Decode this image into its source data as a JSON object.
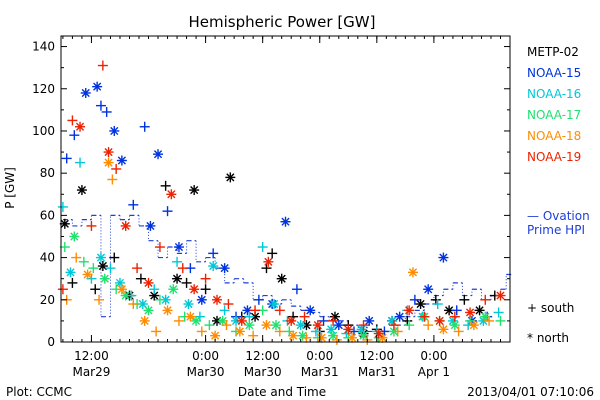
{
  "chart_data": {
    "type": "scatter",
    "title": "Hemispheric Power [GW]",
    "ylabel": "P [GW]",
    "xlabel": "Date and Time",
    "ylim": [
      0,
      145
    ],
    "xlim": [
      -1.6,
      22.0
    ],
    "yticks": [
      0,
      20,
      40,
      60,
      80,
      100,
      120,
      140
    ],
    "xticks": [
      {
        "x": 0,
        "top": "12:00",
        "bottom": "Mar29"
      },
      {
        "x": 6,
        "top": "0:00",
        "bottom": "Mar30"
      },
      {
        "x": 9,
        "top": "12:00",
        "bottom": "Mar30"
      },
      {
        "x": 12,
        "top": "0:00",
        "bottom": "Mar31"
      },
      {
        "x": 15,
        "top": "12:00",
        "bottom": "Mar31"
      },
      {
        "x": 18,
        "top": "0:00",
        "bottom": "Apr 1"
      }
    ],
    "marker_legend": {
      "south": "+ south",
      "north": "* north"
    },
    "series": [
      {
        "name": "METP-02",
        "color": "#000000",
        "points": [
          [
            -1.4,
            56,
            "n"
          ],
          [
            -1.0,
            28,
            "s"
          ],
          [
            -0.5,
            72,
            "n"
          ],
          [
            0.2,
            25,
            "s"
          ],
          [
            0.6,
            36,
            "n"
          ],
          [
            1.2,
            40,
            "s"
          ],
          [
            2.0,
            22,
            "n"
          ],
          [
            2.6,
            30,
            "s"
          ],
          [
            3.3,
            22,
            "n"
          ],
          [
            3.9,
            74,
            "s"
          ],
          [
            4.5,
            30,
            "n"
          ],
          [
            5.0,
            28,
            "s"
          ],
          [
            5.4,
            72,
            "n"
          ],
          [
            6.0,
            25,
            "s"
          ],
          [
            6.6,
            10,
            "n"
          ],
          [
            7.3,
            78,
            "n"
          ],
          [
            7.9,
            12,
            "s"
          ],
          [
            8.6,
            12,
            "n"
          ],
          [
            9.2,
            35,
            "s"
          ],
          [
            9.5,
            42,
            "s"
          ],
          [
            10.0,
            30,
            "n"
          ],
          [
            10.6,
            12,
            "s"
          ],
          [
            11.3,
            8,
            "n"
          ],
          [
            12.0,
            5,
            "s"
          ],
          [
            12.8,
            12,
            "n"
          ],
          [
            13.5,
            8,
            "s"
          ],
          [
            14.3,
            4,
            "n"
          ],
          [
            15.0,
            6,
            "s"
          ],
          [
            15.8,
            10,
            "n"
          ],
          [
            16.6,
            10,
            "s"
          ],
          [
            17.3,
            18,
            "n"
          ],
          [
            18.1,
            20,
            "s"
          ],
          [
            18.8,
            15,
            "n"
          ],
          [
            19.6,
            20,
            "s"
          ],
          [
            20.4,
            15,
            "n"
          ],
          [
            21.2,
            22,
            "s"
          ]
        ]
      },
      {
        "name": "NOAA-15",
        "color": "#0033dd",
        "points": [
          [
            -1.3,
            87,
            "s"
          ],
          [
            -0.9,
            98,
            "s"
          ],
          [
            -0.3,
            118,
            "n"
          ],
          [
            0.3,
            121,
            "n"
          ],
          [
            0.5,
            112,
            "s"
          ],
          [
            0.8,
            109,
            "s"
          ],
          [
            1.2,
            100,
            "n"
          ],
          [
            1.6,
            86,
            "n"
          ],
          [
            2.2,
            65,
            "s"
          ],
          [
            2.8,
            102,
            "s"
          ],
          [
            3.1,
            55,
            "n"
          ],
          [
            3.5,
            89,
            "n"
          ],
          [
            4.0,
            62,
            "s"
          ],
          [
            4.6,
            45,
            "n"
          ],
          [
            5.2,
            35,
            "s"
          ],
          [
            5.8,
            20,
            "n"
          ],
          [
            6.4,
            42,
            "s"
          ],
          [
            7.0,
            35,
            "n"
          ],
          [
            7.6,
            12,
            "s"
          ],
          [
            8.2,
            15,
            "n"
          ],
          [
            8.8,
            20,
            "s"
          ],
          [
            9.5,
            18,
            "n"
          ],
          [
            10.2,
            57,
            "n"
          ],
          [
            10.8,
            25,
            "s"
          ],
          [
            11.5,
            15,
            "n"
          ],
          [
            12.2,
            10,
            "s"
          ],
          [
            13.0,
            8,
            "n"
          ],
          [
            13.8,
            5,
            "s"
          ],
          [
            14.6,
            10,
            "n"
          ],
          [
            15.4,
            5,
            "s"
          ],
          [
            16.2,
            12,
            "n"
          ],
          [
            17.0,
            20,
            "s"
          ],
          [
            17.7,
            25,
            "n"
          ],
          [
            18.5,
            40,
            "n"
          ],
          [
            19.2,
            15,
            "s"
          ],
          [
            20.0,
            10,
            "n"
          ],
          [
            20.8,
            12,
            "s"
          ]
        ]
      },
      {
        "name": "NOAA-16",
        "color": "#00c8d8",
        "points": [
          [
            -1.5,
            64,
            "s"
          ],
          [
            -1.1,
            33,
            "n"
          ],
          [
            -0.6,
            85,
            "s"
          ],
          [
            0.0,
            30,
            "s"
          ],
          [
            0.5,
            40,
            "n"
          ],
          [
            1.0,
            35,
            "s"
          ],
          [
            1.5,
            28,
            "n"
          ],
          [
            2.1,
            22,
            "s"
          ],
          [
            2.7,
            18,
            "n"
          ],
          [
            3.3,
            25,
            "s"
          ],
          [
            3.9,
            20,
            "n"
          ],
          [
            4.5,
            38,
            "s"
          ],
          [
            5.1,
            18,
            "n"
          ],
          [
            5.7,
            12,
            "s"
          ],
          [
            6.4,
            36,
            "n"
          ],
          [
            7.0,
            15,
            "s"
          ],
          [
            7.6,
            10,
            "n"
          ],
          [
            8.3,
            12,
            "s"
          ],
          [
            9.0,
            45,
            "s"
          ],
          [
            9.6,
            18,
            "n"
          ],
          [
            10.3,
            10,
            "s"
          ],
          [
            11.0,
            8,
            "n"
          ],
          [
            11.8,
            5,
            "s"
          ],
          [
            12.6,
            6,
            "n"
          ],
          [
            13.4,
            4,
            "s"
          ],
          [
            14.2,
            6,
            "n"
          ],
          [
            15.0,
            5,
            "s"
          ],
          [
            15.8,
            10,
            "n"
          ],
          [
            16.6,
            15,
            "s"
          ],
          [
            17.4,
            12,
            "n"
          ],
          [
            18.2,
            18,
            "s"
          ],
          [
            19.0,
            10,
            "n"
          ],
          [
            19.8,
            8,
            "s"
          ],
          [
            20.6,
            10,
            "n"
          ],
          [
            21.4,
            14,
            "s"
          ]
        ]
      },
      {
        "name": "NOAA-17",
        "color": "#20e070",
        "points": [
          [
            -1.4,
            45,
            "s"
          ],
          [
            -0.9,
            50,
            "n"
          ],
          [
            -0.4,
            38,
            "s"
          ],
          [
            0.1,
            35,
            "s"
          ],
          [
            0.7,
            30,
            "n"
          ],
          [
            1.3,
            25,
            "s"
          ],
          [
            1.8,
            22,
            "n"
          ],
          [
            2.4,
            18,
            "s"
          ],
          [
            3.0,
            15,
            "n"
          ],
          [
            3.6,
            20,
            "s"
          ],
          [
            4.3,
            25,
            "n"
          ],
          [
            4.9,
            12,
            "s"
          ],
          [
            5.5,
            10,
            "n"
          ],
          [
            6.2,
            8,
            "s"
          ],
          [
            6.9,
            10,
            "n"
          ],
          [
            7.6,
            5,
            "s"
          ],
          [
            8.3,
            8,
            "n"
          ],
          [
            9.0,
            15,
            "s"
          ],
          [
            9.7,
            8,
            "n"
          ],
          [
            10.4,
            5,
            "s"
          ],
          [
            11.1,
            3,
            "n"
          ],
          [
            11.9,
            2,
            "s"
          ],
          [
            12.7,
            3,
            "n"
          ],
          [
            13.5,
            2,
            "s"
          ],
          [
            14.3,
            3,
            "n"
          ],
          [
            15.1,
            2,
            "s"
          ],
          [
            15.9,
            5,
            "n"
          ],
          [
            16.7,
            8,
            "s"
          ],
          [
            17.5,
            12,
            "n"
          ],
          [
            18.3,
            10,
            "s"
          ],
          [
            19.1,
            8,
            "n"
          ],
          [
            19.9,
            10,
            "s"
          ],
          [
            20.7,
            12,
            "n"
          ],
          [
            21.5,
            10,
            "s"
          ]
        ]
      },
      {
        "name": "NOAA-18",
        "color": "#ff8c00",
        "points": [
          [
            -1.3,
            20,
            "s"
          ],
          [
            -0.8,
            40,
            "s"
          ],
          [
            -0.2,
            32,
            "n"
          ],
          [
            0.4,
            20,
            "s"
          ],
          [
            0.9,
            85,
            "n"
          ],
          [
            1.1,
            77,
            "s"
          ],
          [
            1.6,
            25,
            "n"
          ],
          [
            2.2,
            18,
            "s"
          ],
          [
            2.8,
            10,
            "n"
          ],
          [
            3.4,
            5,
            "s"
          ],
          [
            4.0,
            15,
            "n"
          ],
          [
            4.6,
            10,
            "s"
          ],
          [
            5.2,
            12,
            "n"
          ],
          [
            5.8,
            5,
            "s"
          ],
          [
            6.5,
            3,
            "n"
          ],
          [
            7.1,
            8,
            "s"
          ],
          [
            7.8,
            5,
            "n"
          ],
          [
            8.5,
            3,
            "s"
          ],
          [
            9.2,
            8,
            "n"
          ],
          [
            9.9,
            5,
            "s"
          ],
          [
            10.6,
            3,
            "n"
          ],
          [
            11.3,
            2,
            "s"
          ],
          [
            12.1,
            2,
            "n"
          ],
          [
            12.9,
            1,
            "s"
          ],
          [
            13.7,
            2,
            "n"
          ],
          [
            14.5,
            1,
            "s"
          ],
          [
            15.3,
            2,
            "n"
          ],
          [
            16.1,
            5,
            "s"
          ],
          [
            16.9,
            33,
            "n"
          ],
          [
            17.7,
            8,
            "s"
          ],
          [
            18.5,
            6,
            "n"
          ],
          [
            19.3,
            5,
            "s"
          ],
          [
            20.1,
            8,
            "n"
          ],
          [
            20.9,
            10,
            "s"
          ]
        ]
      },
      {
        "name": "NOAA-19",
        "color": "#ee2200",
        "points": [
          [
            -1.5,
            25,
            "s"
          ],
          [
            -1.0,
            105,
            "s"
          ],
          [
            -0.6,
            102,
            "n"
          ],
          [
            0.0,
            55,
            "s"
          ],
          [
            0.6,
            131,
            "s"
          ],
          [
            0.9,
            90,
            "n"
          ],
          [
            1.3,
            82,
            "s"
          ],
          [
            1.8,
            55,
            "n"
          ],
          [
            2.4,
            35,
            "s"
          ],
          [
            3.0,
            28,
            "n"
          ],
          [
            3.6,
            45,
            "s"
          ],
          [
            4.2,
            70,
            "n"
          ],
          [
            4.8,
            35,
            "s"
          ],
          [
            5.4,
            25,
            "n"
          ],
          [
            6.0,
            30,
            "s"
          ],
          [
            6.6,
            20,
            "n"
          ],
          [
            7.2,
            18,
            "s"
          ],
          [
            7.9,
            10,
            "n"
          ],
          [
            8.6,
            15,
            "s"
          ],
          [
            9.3,
            38,
            "n"
          ],
          [
            9.9,
            15,
            "s"
          ],
          [
            10.5,
            10,
            "n"
          ],
          [
            11.2,
            12,
            "s"
          ],
          [
            11.9,
            8,
            "n"
          ],
          [
            12.7,
            10,
            "s"
          ],
          [
            13.5,
            6,
            "n"
          ],
          [
            14.3,
            8,
            "s"
          ],
          [
            15.1,
            4,
            "n"
          ],
          [
            15.9,
            8,
            "s"
          ],
          [
            16.7,
            15,
            "n"
          ],
          [
            17.5,
            12,
            "s"
          ],
          [
            18.3,
            10,
            "n"
          ],
          [
            19.1,
            12,
            "s"
          ],
          [
            19.9,
            14,
            "n"
          ],
          [
            20.7,
            20,
            "s"
          ],
          [
            21.5,
            22,
            "n"
          ]
        ]
      }
    ],
    "ovation": {
      "name": "Ovation Prime HPI",
      "label_lines": [
        "— Ovation",
        "Prime HPI"
      ],
      "color": "#1f3fd8",
      "points": [
        [
          -1.5,
          58
        ],
        [
          -1.0,
          55
        ],
        [
          -0.5,
          58
        ],
        [
          0.0,
          60
        ],
        [
          0.5,
          12
        ],
        [
          1.0,
          60
        ],
        [
          1.5,
          58
        ],
        [
          2.0,
          60
        ],
        [
          2.5,
          55
        ],
        [
          3.0,
          48
        ],
        [
          3.5,
          40
        ],
        [
          4.0,
          45
        ],
        [
          4.5,
          42
        ],
        [
          5.0,
          48
        ],
        [
          5.5,
          38
        ],
        [
          6.0,
          40
        ],
        [
          6.5,
          35
        ],
        [
          7.0,
          28
        ],
        [
          7.5,
          30
        ],
        [
          8.0,
          28
        ],
        [
          8.5,
          20
        ],
        [
          9.0,
          22
        ],
        [
          9.5,
          18
        ],
        [
          10.0,
          20
        ],
        [
          10.5,
          17
        ],
        [
          11.0,
          15
        ],
        [
          11.5,
          14
        ],
        [
          12.0,
          12
        ],
        [
          12.5,
          10
        ],
        [
          13.0,
          10
        ],
        [
          13.5,
          8
        ],
        [
          14.0,
          7
        ],
        [
          14.5,
          5
        ],
        [
          15.0,
          5
        ],
        [
          15.5,
          5
        ],
        [
          16.0,
          8
        ],
        [
          16.5,
          12
        ],
        [
          17.0,
          15
        ],
        [
          17.5,
          18
        ],
        [
          18.0,
          22
        ],
        [
          18.5,
          25
        ],
        [
          19.0,
          28
        ],
        [
          19.5,
          22
        ],
        [
          20.0,
          25
        ],
        [
          20.5,
          20
        ],
        [
          21.0,
          22
        ],
        [
          21.5,
          25
        ],
        [
          21.8,
          32
        ]
      ]
    }
  },
  "footer": {
    "plot_credit": "Plot: CCMC",
    "timestamp": "2013/04/01 07:10:06"
  }
}
